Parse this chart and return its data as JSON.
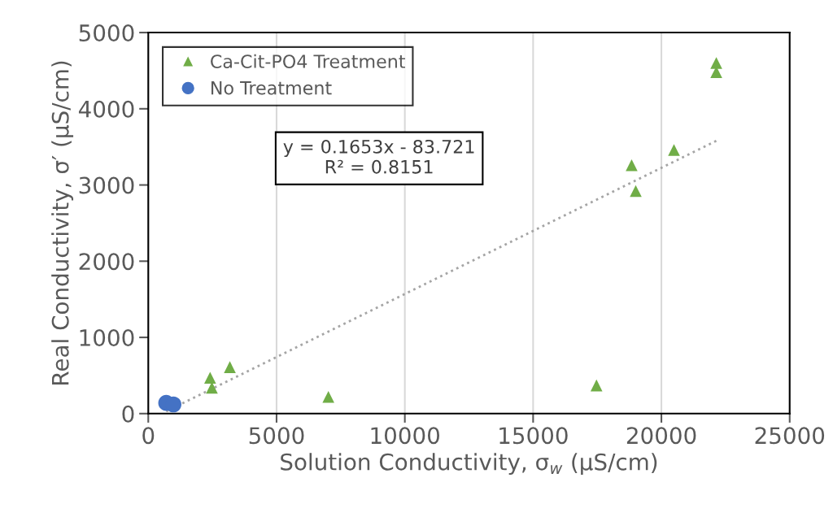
{
  "chart_data": {
    "type": "scatter",
    "xlabel": "Solution Conductivity, σ$_{w}$ (µS/cm)",
    "ylabel": "Real Conductivity, σ′ (µS/cm)",
    "series": [
      {
        "name": "Ca-Cit-PO4 Treatment",
        "color": "#70ad47",
        "marker": "triangle",
        "x": [
          2410,
          2480,
          3180,
          7020,
          17470,
          18840,
          19000,
          20490,
          22140,
          22140
        ],
        "values": [
          470,
          340,
          610,
          220,
          370,
          3260,
          2920,
          3460,
          4600,
          4480
        ]
      },
      {
        "name": "No Treatment",
        "color": "#4472c4",
        "marker": "circle",
        "x": [
          700,
          980
        ],
        "values": [
          140,
          120
        ]
      },
      {
        "type": "line",
        "color": "#a5a5a5",
        "line_style": "dotted",
        "marker": "none",
        "x": [
          700,
          22140
        ],
        "values": [
          30,
          3580
        ]
      }
    ],
    "annotations": [
      "y = 0.1653x - 83.721\nR² = 0.8151"
    ],
    "xlim": [
      0,
      25000
    ],
    "xticks": [
      0,
      5000,
      10000,
      15000,
      20000,
      25000
    ],
    "ylim": [
      0,
      5000
    ],
    "yticks": [
      0,
      1000,
      2000,
      3000,
      4000,
      5000
    ],
    "grid": "x",
    "legend": "top left"
  }
}
